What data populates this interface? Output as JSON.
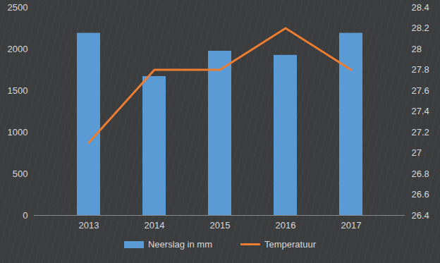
{
  "chart_data": {
    "type": "bar",
    "categories": [
      "2013",
      "2014",
      "2015",
      "2016",
      "2017"
    ],
    "series": [
      {
        "name": "Neerslag in mm",
        "type": "bar",
        "color": "#5b9bd5",
        "values": [
          2190,
          1670,
          1975,
          1925,
          2190
        ]
      },
      {
        "name": "Temperatuur",
        "type": "line",
        "color": "#ed7d31",
        "axis": "y2",
        "values": [
          27.1,
          27.8,
          27.8,
          28.2,
          27.8
        ]
      }
    ],
    "ylim": [
      0,
      2500
    ],
    "yticks": [
      0,
      500,
      1000,
      1500,
      2000,
      2500
    ],
    "y2lim": [
      26.4,
      28.4
    ],
    "y2ticks": [
      26.4,
      26.6,
      26.8,
      27,
      27.2,
      27.4,
      27.6,
      27.8,
      28,
      28.2,
      28.4
    ],
    "grid": false,
    "legend": "bottom"
  }
}
